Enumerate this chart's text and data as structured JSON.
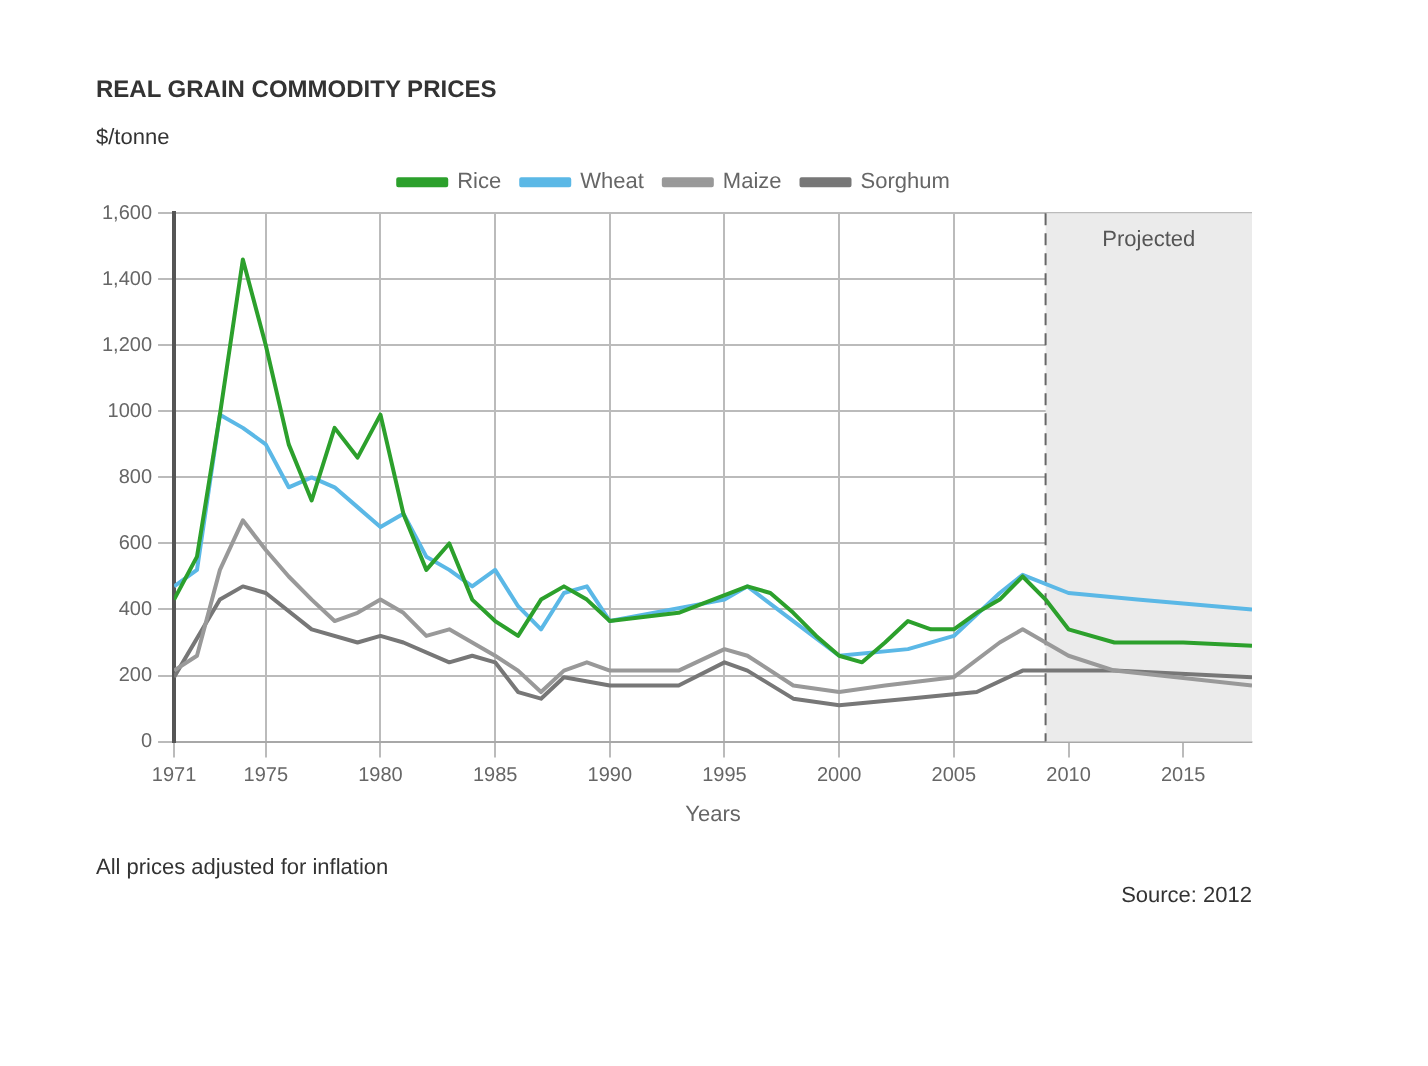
{
  "chart_data": {
    "type": "line",
    "title": "REAL GRAIN COMMODITY PRICES",
    "subtitle": "$/tonne",
    "xlabel": "Years",
    "annotations": [
      "All prices adjusted for inflation",
      "Source: 2012"
    ],
    "xlim": [
      1971,
      2018
    ],
    "xticks": [
      1971,
      1975,
      1980,
      1985,
      1990,
      1995,
      2000,
      2005,
      2010,
      2015
    ],
    "ylim": [
      0,
      1600
    ],
    "yticks": [
      0,
      200,
      400,
      600,
      800,
      1000,
      {
        "value": 1200,
        "label": "1,200"
      },
      {
        "value": 1400,
        "label": "1,400"
      },
      {
        "value": 1600,
        "label": "1,600"
      }
    ],
    "grid": true,
    "legend": "top",
    "marker": "none",
    "line_style": "solid",
    "ref_lines": [
      {
        "axis": "x",
        "value": 2009,
        "color": "#666666",
        "line_style": "dashed"
      }
    ],
    "bands": [
      {
        "axis": "x",
        "from": 2009,
        "to": 2018,
        "label": "Projected",
        "color": "#ebebeb"
      }
    ],
    "series": [
      {
        "name": "Rice",
        "color": "#2ca02c",
        "x": [
          1971,
          1972,
          1973,
          1974,
          1975,
          1976,
          1977,
          1978,
          1979,
          1980,
          1981,
          1982,
          1983,
          1984,
          1985,
          1986,
          1987,
          1988,
          1989,
          1990,
          1993,
          1996,
          1997,
          1998,
          1999,
          2000,
          2001,
          2002,
          2003,
          2004,
          2005,
          2006,
          2007,
          2008,
          2009,
          2010,
          2012,
          2015,
          2018
        ],
        "values": [
          430,
          560,
          990,
          1460,
          1200,
          900,
          730,
          950,
          860,
          990,
          690,
          520,
          600,
          430,
          365,
          320,
          430,
          470,
          430,
          365,
          390,
          470,
          450,
          390,
          320,
          260,
          240,
          300,
          365,
          340,
          340,
          390,
          430,
          500,
          430,
          340,
          300,
          300,
          290
        ]
      },
      {
        "name": "Wheat",
        "color": "#5bb8e6",
        "x": [
          1971,
          1972,
          1973,
          1974,
          1975,
          1976,
          1977,
          1978,
          1979,
          1980,
          1981,
          1982,
          1983,
          1984,
          1985,
          1986,
          1987,
          1988,
          1989,
          1990,
          1995,
          1996,
          1998,
          2000,
          2003,
          2005,
          2007,
          2008,
          2010,
          2013,
          2018
        ],
        "values": [
          470,
          520,
          990,
          950,
          900,
          770,
          800,
          770,
          710,
          650,
          690,
          560,
          520,
          470,
          520,
          410,
          340,
          450,
          470,
          365,
          430,
          470,
          365,
          260,
          280,
          320,
          450,
          505,
          450,
          430,
          400
        ]
      },
      {
        "name": "Maize",
        "color": "#999999",
        "x": [
          1971,
          1972,
          1973,
          1974,
          1975,
          1976,
          1977,
          1978,
          1979,
          1980,
          1981,
          1982,
          1983,
          1984,
          1985,
          1986,
          1987,
          1988,
          1989,
          1990,
          1993,
          1995,
          1996,
          1998,
          2000,
          2002,
          2005,
          2007,
          2008,
          2010,
          2012,
          2018
        ],
        "values": [
          215,
          260,
          520,
          670,
          580,
          500,
          430,
          365,
          390,
          430,
          390,
          320,
          340,
          300,
          260,
          215,
          150,
          215,
          240,
          215,
          215,
          280,
          260,
          170,
          150,
          170,
          195,
          300,
          340,
          260,
          215,
          170
        ]
      },
      {
        "name": "Sorghum",
        "color": "#777777",
        "x": [
          1971,
          1973,
          1974,
          1975,
          1977,
          1979,
          1980,
          1981,
          1983,
          1984,
          1985,
          1986,
          1987,
          1988,
          1990,
          1993,
          1995,
          1996,
          1998,
          2000,
          2003,
          2006,
          2008,
          2010,
          2012,
          2018
        ],
        "values": [
          195,
          430,
          470,
          450,
          340,
          300,
          320,
          300,
          240,
          260,
          240,
          150,
          130,
          195,
          170,
          170,
          240,
          215,
          130,
          110,
          130,
          150,
          215,
          215,
          215,
          195
        ]
      }
    ]
  }
}
